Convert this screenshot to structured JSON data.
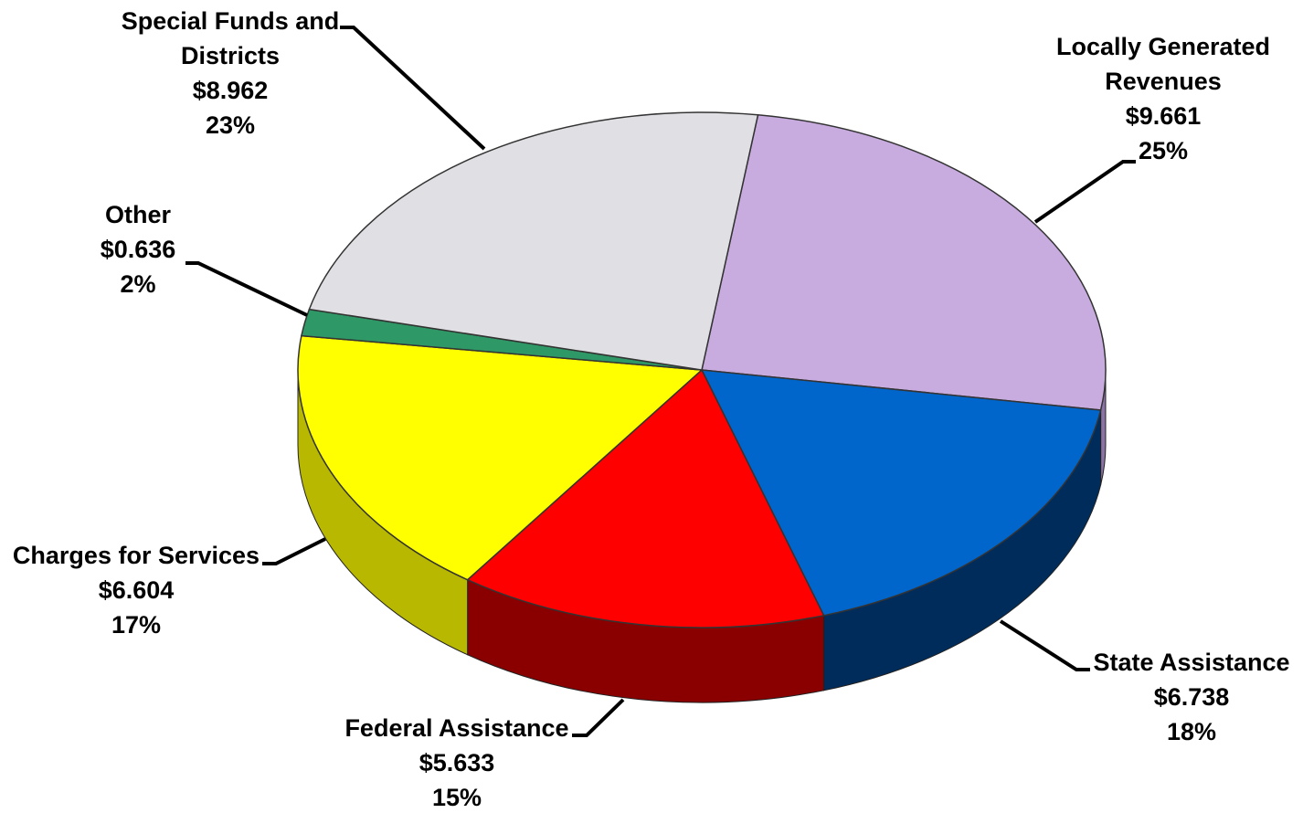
{
  "chart_data": {
    "type": "pie",
    "title": "",
    "slices": [
      {
        "label": "Locally Generated Revenues",
        "label_lines": [
          "Locally Generated",
          "Revenues"
        ],
        "value_text": "$9.661",
        "value": 9.661,
        "percent_text": "25%",
        "color": "#C8ACE0",
        "side_color": "#8C73A6"
      },
      {
        "label": "State Assistance",
        "label_lines": [
          "State Assistance"
        ],
        "value_text": "$6.738",
        "value": 6.738,
        "percent_text": "18%",
        "color": "#0066CC",
        "side_color": "#002C5C"
      },
      {
        "label": "Federal Assistance",
        "label_lines": [
          "Federal Assistance"
        ],
        "value_text": "$5.633",
        "value": 5.633,
        "percent_text": "15%",
        "color": "#FF0000",
        "side_color": "#8A0000"
      },
      {
        "label": "Charges for Services",
        "label_lines": [
          "Charges for Services"
        ],
        "value_text": "$6.604",
        "value": 6.604,
        "percent_text": "17%",
        "color": "#FFFF00",
        "side_color": "#B8B800"
      },
      {
        "label": "Other",
        "label_lines": [
          "Other"
        ],
        "value_text": "$0.636",
        "value": 0.636,
        "percent_text": "2%",
        "color": "#2E9966",
        "side_color": "#1B5E3E"
      },
      {
        "label": "Special Funds and Districts",
        "label_lines": [
          "Special Funds and",
          "Districts"
        ],
        "value_text": "$8.962",
        "value": 8.962,
        "percent_text": "23%",
        "color": "#E0E0E4",
        "side_color": "#9A9AA0"
      }
    ]
  }
}
